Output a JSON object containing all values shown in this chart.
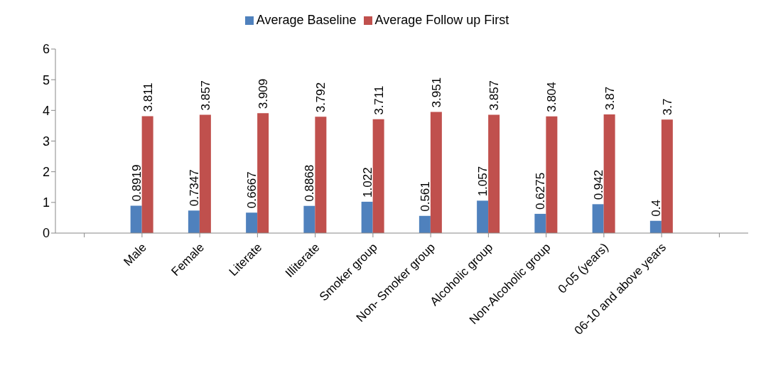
{
  "chart_data": {
    "type": "bar",
    "categories": [
      null,
      "Male",
      "Female",
      "Literate",
      "Illiterate",
      "Smoker group",
      "Non- Smoker group",
      "Alcoholic group",
      "Non-Alcoholic group",
      "0-05 (years)",
      "06-10 and above years",
      null
    ],
    "series": [
      {
        "name": "Average Baseline",
        "color": "#4f81bd",
        "values": [
          null,
          0.8919,
          0.7347,
          0.6667,
          0.8868,
          1.022,
          0.561,
          1.057,
          0.6275,
          0.942,
          0.4,
          null
        ]
      },
      {
        "name": "Average Follow up First",
        "color": "#c0504d",
        "values": [
          null,
          3.811,
          3.857,
          3.909,
          3.792,
          3.711,
          3.951,
          3.857,
          3.804,
          3.87,
          3.7,
          null
        ]
      }
    ],
    "ylim": [
      0,
      6
    ],
    "yticks": [
      0,
      1,
      2,
      3,
      4,
      5,
      6
    ],
    "grid": false,
    "legend": "top",
    "data_labels": true
  }
}
